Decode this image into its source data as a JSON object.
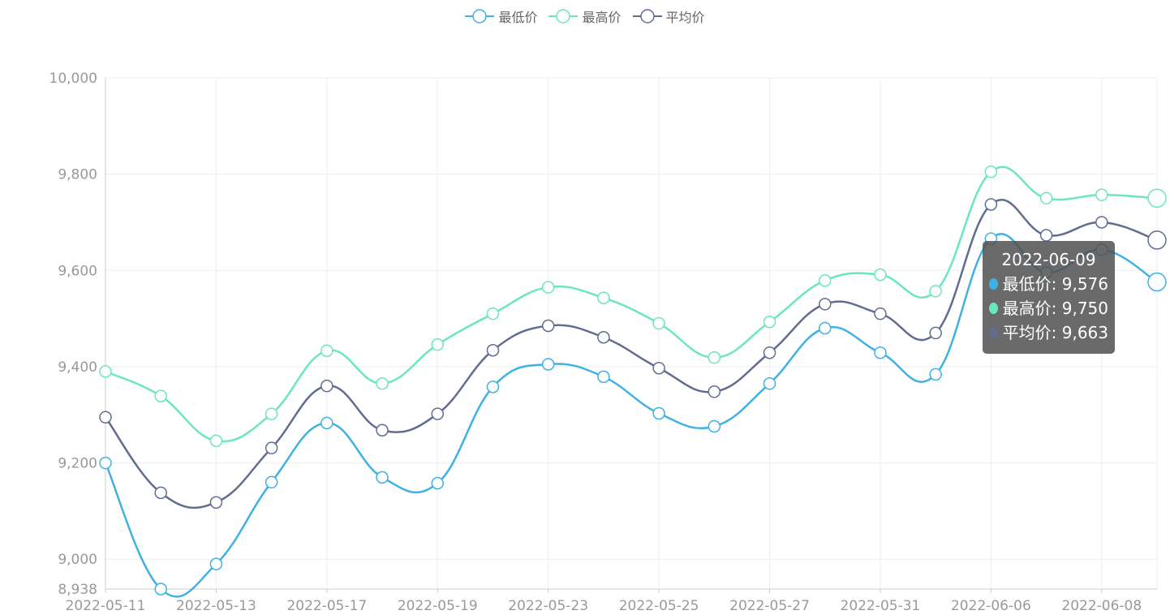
{
  "legend": [
    {
      "name": "最低价",
      "color": "#3fb1e3"
    },
    {
      "name": "最高价",
      "color": "#6be6c1"
    },
    {
      "name": "平均价",
      "color": "#626c91"
    }
  ],
  "tooltip": {
    "title": "2022-06-09",
    "rows": [
      {
        "label": "最低价: 9,576",
        "color": "#3fb1e3"
      },
      {
        "label": "最高价: 9,750",
        "color": "#6be6c1"
      },
      {
        "label": "平均价: 9,663",
        "color": "#626c91"
      }
    ]
  },
  "chart_data": {
    "type": "line",
    "x_labels": [
      "2022-05-11",
      "2022-05-13",
      "2022-05-17",
      "2022-05-19",
      "2022-05-23",
      "2022-05-25",
      "2022-05-27",
      "2022-05-31",
      "2022-06-06",
      "2022-06-08"
    ],
    "ylim": [
      8938,
      10000
    ],
    "y_ticks": [
      8938,
      9000,
      9200,
      9400,
      9600,
      9800,
      10000
    ],
    "y_tick_labels": [
      "8,938",
      "9,000",
      "9,200",
      "9,400",
      "9,600",
      "9,800",
      "10,000"
    ],
    "grid": true,
    "legend_position": "top-center",
    "series": [
      {
        "name": "最低价",
        "color": "#3fb1e3",
        "values": [
          9200,
          8938,
          8990,
          9160,
          9283,
          9170,
          9158,
          9358,
          9405,
          9379,
          9303,
          9276,
          9365,
          9480,
          9429,
          9384,
          9666,
          9596,
          9643,
          9576
        ]
      },
      {
        "name": "最高价",
        "color": "#6be6c1",
        "values": [
          9390,
          9339,
          9246,
          9302,
          9433,
          9365,
          9446,
          9510,
          9565,
          9543,
          9490,
          9419,
          9493,
          9579,
          9591,
          9557,
          9805,
          9750,
          9757,
          9750
        ]
      },
      {
        "name": "平均价",
        "color": "#626c91",
        "values": [
          9295,
          9138,
          9118,
          9231,
          9360,
          9268,
          9302,
          9434,
          9485,
          9461,
          9397,
          9348,
          9429,
          9530,
          9510,
          9470,
          9737,
          9673,
          9700,
          9663
        ]
      }
    ]
  }
}
